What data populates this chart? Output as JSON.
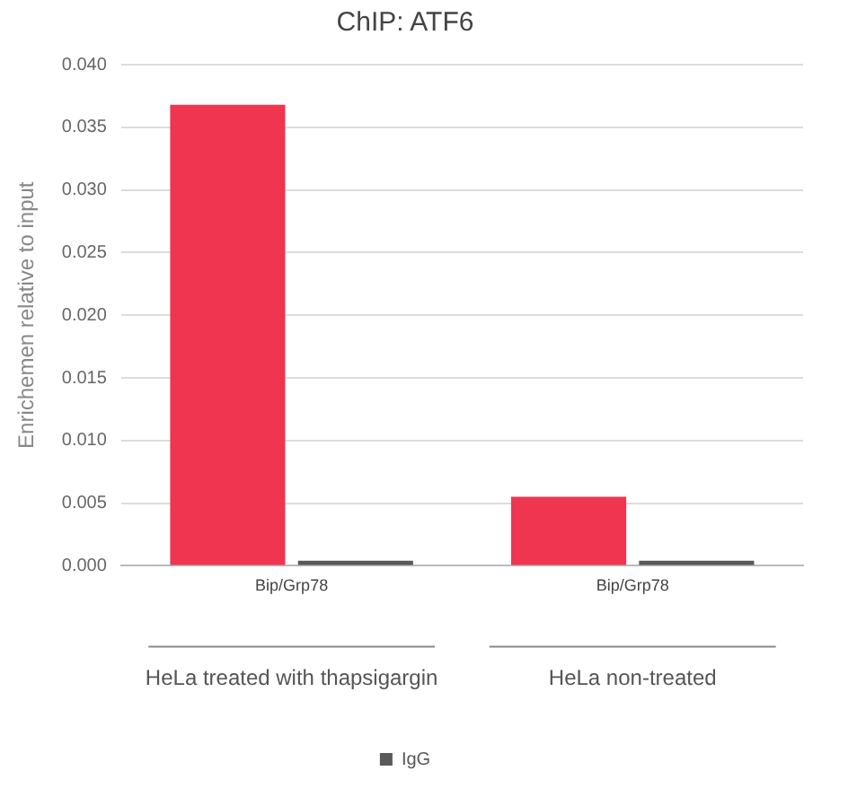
{
  "chart_data": {
    "type": "bar",
    "title": "ChIP: ATF6",
    "ylabel": "Enrichemen relative to input",
    "categories": [
      "Bip/Grp78",
      "Bip/Grp78"
    ],
    "series": [
      {
        "color": "#ef3550",
        "values": [
          0.0368,
          0.0055
        ]
      },
      {
        "name": "IgG",
        "color": "#595959",
        "values": [
          0.0004,
          0.0004
        ]
      }
    ],
    "ylim": [
      0,
      0.04
    ],
    "yticks": [
      {
        "value": 0,
        "label": "0.000"
      },
      {
        "value": 0.005,
        "label": "0.005"
      },
      {
        "value": 0.01,
        "label": "0.010"
      },
      {
        "value": 0.015,
        "label": "0.015"
      },
      {
        "value": 0.02,
        "label": "0.020"
      },
      {
        "value": 0.025,
        "label": "0.025"
      },
      {
        "value": 0.03,
        "label": "0.030"
      },
      {
        "value": 0.035,
        "label": "0.035"
      },
      {
        "value": 0.04,
        "label": "0.040"
      }
    ],
    "grid": "y",
    "legend": "bottom",
    "annotations": [
      "HeLa treated with thapsigargin",
      "HeLa non-treated"
    ]
  }
}
